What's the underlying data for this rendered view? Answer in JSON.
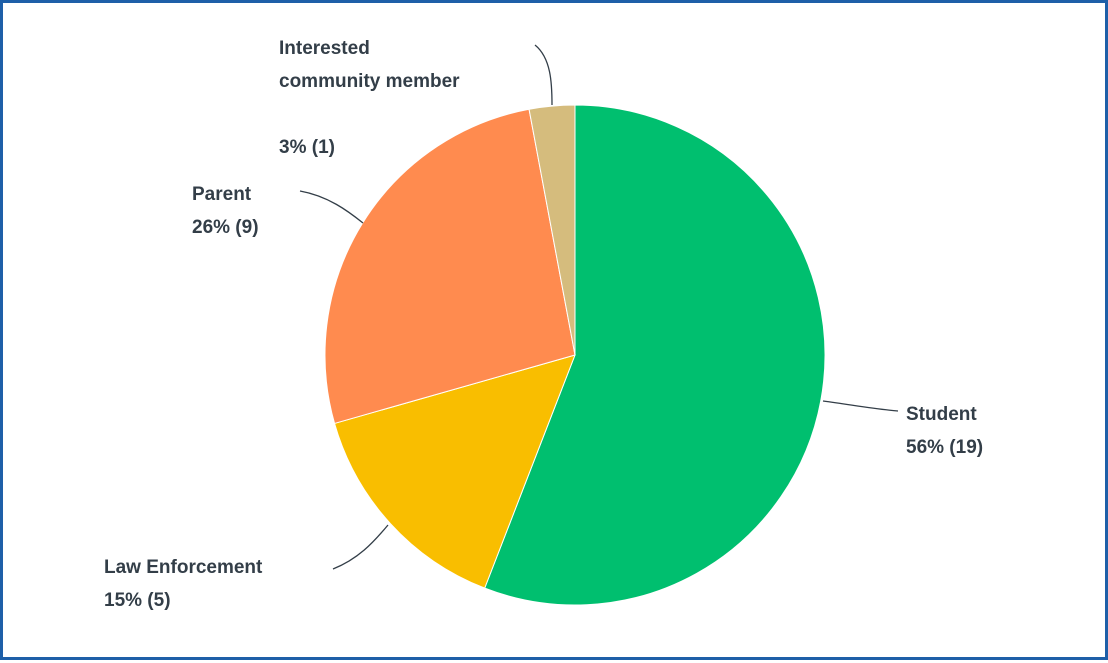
{
  "chart_data": {
    "type": "pie",
    "title": "",
    "start": "top",
    "direction": "clockwise",
    "slices": [
      {
        "name": "Student",
        "label": "Student",
        "percent_label": "56% (19)",
        "percent": 56,
        "count": 19,
        "color": "#00bf6f"
      },
      {
        "name": "Law Enforcement",
        "label": "Law Enforcement",
        "percent_label": "15% (5)",
        "percent": 15,
        "count": 5,
        "color": "#f9be00"
      },
      {
        "name": "Parent",
        "label": "Parent",
        "percent_label": "26% (9)",
        "percent": 26,
        "count": 9,
        "color": "#ff8b4f"
      },
      {
        "name": "Interested community member",
        "label_lines": [
          "Interested",
          "community member"
        ],
        "percent_label": "3% (1)",
        "percent": 3,
        "count": 1,
        "color": "#d5bc7d"
      }
    ]
  }
}
